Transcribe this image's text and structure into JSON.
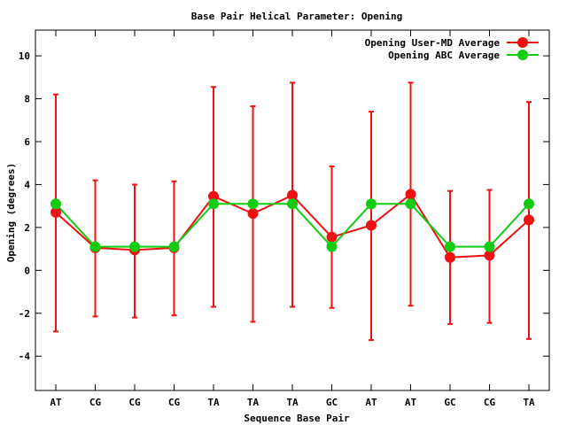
{
  "chart_data": {
    "type": "line",
    "title": "Base Pair Helical Parameter: Opening",
    "xlabel": "Sequence Base Pair",
    "ylabel": "Opening (degrees)",
    "categories": [
      "AT",
      "CG",
      "CG",
      "CG",
      "TA",
      "TA",
      "TA",
      "GC",
      "AT",
      "AT",
      "GC",
      "CG",
      "TA"
    ],
    "ylim": [
      -5.6,
      11.2
    ],
    "yticks": [
      -4,
      -2,
      0,
      2,
      4,
      6,
      8,
      10
    ],
    "grid": false,
    "legend_position": "top-right",
    "series": [
      {
        "name": "Opening User-MD Average",
        "color": "#ee1111",
        "values": [
          2.7,
          1.05,
          0.95,
          1.05,
          3.45,
          2.65,
          3.5,
          1.55,
          2.1,
          3.55,
          0.6,
          0.7,
          2.35
        ],
        "error_low": [
          -2.85,
          -2.15,
          -2.2,
          -2.1,
          -1.7,
          -2.4,
          -1.7,
          -1.75,
          -3.25,
          -1.65,
          -2.5,
          -2.45,
          -3.2
        ],
        "error_high": [
          8.2,
          4.2,
          4.0,
          4.15,
          8.55,
          7.65,
          8.75,
          4.85,
          7.4,
          8.75,
          3.7,
          3.75,
          7.85
        ]
      },
      {
        "name": "Opening ABC Average",
        "color": "#11cc11",
        "values": [
          3.1,
          1.1,
          1.1,
          1.1,
          3.1,
          3.1,
          3.1,
          1.1,
          3.1,
          3.1,
          1.1,
          1.1,
          3.1
        ]
      }
    ]
  }
}
